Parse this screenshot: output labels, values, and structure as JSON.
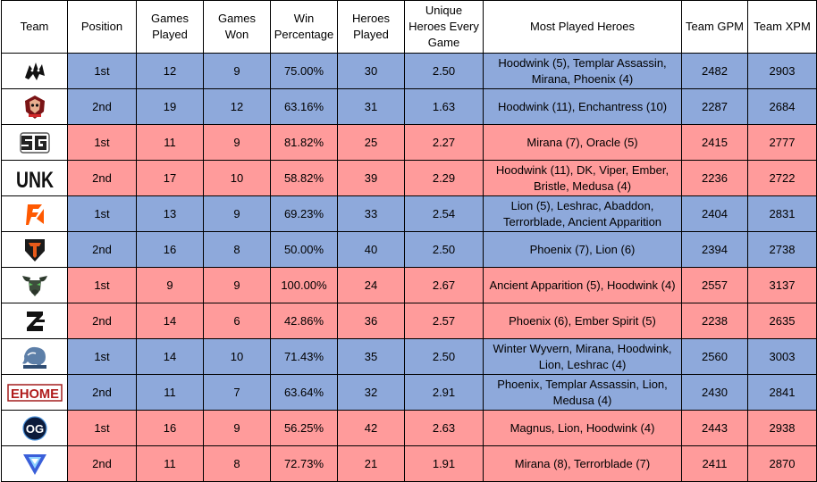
{
  "headers": {
    "team": "Team",
    "position": "Position",
    "games_played": "Games Played",
    "games_won": "Games Won",
    "win_percentage": "Win Percentage",
    "heroes_played": "Heroes Played",
    "unique_heroes": "Unique Heroes Every Game",
    "most_played": "Most Played Heroes",
    "team_gpm": "Team GPM",
    "team_xpm": "Team XPM"
  },
  "colors": {
    "blue_row": "#8ea9db",
    "red_row": "#ff9b9b"
  },
  "rows": [
    {
      "logo": "spirit-logo-icon",
      "color": "blue",
      "position": "1st",
      "games_played": "12",
      "games_won": "9",
      "win_percentage": "75.00%",
      "heroes_played": "30",
      "unique_heroes": "2.50",
      "most_played": "Hoodwink (5), Templar Assassin, Mirana, Phoenix (4)",
      "gpm": "2482",
      "xpm": "2903"
    },
    {
      "logo": "hydra-logo-icon",
      "color": "blue",
      "position": "2nd",
      "games_played": "19",
      "games_won": "12",
      "win_percentage": "63.16%",
      "heroes_played": "31",
      "unique_heroes": "1.63",
      "most_played": "Hoodwink (11), Enchantress (10)",
      "gpm": "2287",
      "xpm": "2684"
    },
    {
      "logo": "sg-logo-icon",
      "color": "red",
      "position": "1st",
      "games_played": "11",
      "games_won": "9",
      "win_percentage": "81.82%",
      "heroes_played": "25",
      "unique_heroes": "2.27",
      "most_played": "Mirana (7), Oracle (5)",
      "gpm": "2415",
      "xpm": "2777"
    },
    {
      "logo": "unk-logo-icon",
      "logo_text": "UNK",
      "color": "red",
      "position": "2nd",
      "games_played": "17",
      "games_won": "10",
      "win_percentage": "58.82%",
      "heroes_played": "39",
      "unique_heroes": "2.29",
      "most_played": "Hoodwink (11), DK, Viper, Ember, Bristle, Medusa (4)",
      "gpm": "2236",
      "xpm": "2722"
    },
    {
      "logo": "fnatic-logo-icon",
      "color": "blue",
      "position": "1st",
      "games_played": "13",
      "games_won": "9",
      "win_percentage": "69.23%",
      "heroes_played": "33",
      "unique_heroes": "2.54",
      "most_played": "Lion (5), Leshrac, Abaddon, Terrorblade, Ancient Apparition",
      "gpm": "2404",
      "xpm": "2831"
    },
    {
      "logo": "tundra-logo-icon",
      "color": "blue",
      "position": "2nd",
      "games_played": "16",
      "games_won": "8",
      "win_percentage": "50.00%",
      "heroes_played": "40",
      "unique_heroes": "2.50",
      "most_played": "Phoenix (7), Lion (6)",
      "gpm": "2394",
      "xpm": "2738"
    },
    {
      "logo": "bull-logo-icon",
      "color": "red",
      "position": "1st",
      "games_played": "9",
      "games_won": "9",
      "win_percentage": "100.00%",
      "heroes_played": "24",
      "unique_heroes": "2.67",
      "most_played": "Ancient Apparition (5), Hoodwink (4)",
      "gpm": "2557",
      "xpm": "3137"
    },
    {
      "logo": "zero-logo-icon",
      "color": "red",
      "position": "2nd",
      "games_played": "14",
      "games_won": "6",
      "win_percentage": "42.86%",
      "heroes_played": "36",
      "unique_heroes": "2.57",
      "most_played": "Phoenix (6), Ember Spirit (5)",
      "gpm": "2238",
      "xpm": "2635"
    },
    {
      "logo": "elephant-logo-icon",
      "color": "blue",
      "position": "1st",
      "games_played": "14",
      "games_won": "10",
      "win_percentage": "71.43%",
      "heroes_played": "35",
      "unique_heroes": "2.50",
      "most_played": "Winter Wyvern, Mirana, Hoodwink, Lion, Leshrac (4)",
      "gpm": "2560",
      "xpm": "3003"
    },
    {
      "logo": "ehome-logo-icon",
      "logo_text": "EHOME",
      "color": "blue",
      "position": "2nd",
      "games_played": "11",
      "games_won": "7",
      "win_percentage": "63.64%",
      "heroes_played": "32",
      "unique_heroes": "2.91",
      "most_played": "Phoenix, Templar Assassin, Lion, Medusa (4)",
      "gpm": "2430",
      "xpm": "2841"
    },
    {
      "logo": "og-logo-icon",
      "logo_text": "OG",
      "color": "red",
      "position": "1st",
      "games_played": "16",
      "games_won": "9",
      "win_percentage": "56.25%",
      "heroes_played": "42",
      "unique_heroes": "2.63",
      "most_played": "Magnus, Lion, Hoodwink (4)",
      "gpm": "2443",
      "xpm": "2938"
    },
    {
      "logo": "triangle-logo-icon",
      "color": "red",
      "position": "2nd",
      "games_played": "11",
      "games_won": "8",
      "win_percentage": "72.73%",
      "heroes_played": "21",
      "unique_heroes": "1.91",
      "most_played": "Mirana (8), Terrorblade (7)",
      "gpm": "2411",
      "xpm": "2870"
    }
  ]
}
